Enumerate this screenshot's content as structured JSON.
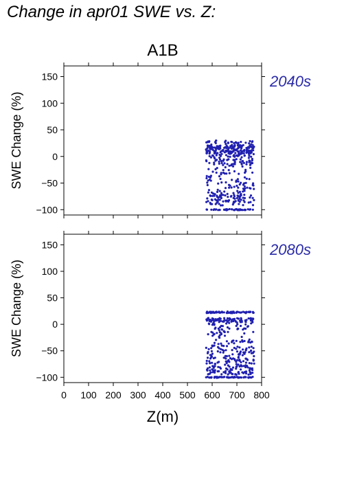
{
  "page_title": "Change in apr01 SWE vs. Z:",
  "colors": {
    "points": "#2020b0",
    "period_label": "#2a2aa8",
    "axis": "#000000"
  },
  "chart_data": [
    {
      "type": "scatter",
      "title": "A1B",
      "period_label": "2040s",
      "ylabel": "SWE Change (%)",
      "xlabel": "",
      "xlim": [
        0,
        800
      ],
      "ylim": [
        -110,
        170
      ],
      "xticks": [
        0,
        100,
        200,
        300,
        400,
        500,
        600,
        700,
        800
      ],
      "yticks": [
        -100,
        -50,
        0,
        50,
        100,
        150
      ],
      "x_tick_labels_shown": false,
      "grid": false,
      "x_range": [
        575,
        770
      ],
      "bands": [
        {
          "y_min": -101,
          "y_max": -99,
          "count": 45
        },
        {
          "y_min": -92,
          "y_max": -72,
          "count": 80
        },
        {
          "y_min": -72,
          "y_max": -45,
          "count": 55
        },
        {
          "y_min": -45,
          "y_max": -15,
          "count": 40
        },
        {
          "y_min": -15,
          "y_max": 5,
          "count": 80
        },
        {
          "y_min": 5,
          "y_max": 22,
          "count": 160
        },
        {
          "y_min": 22,
          "y_max": 30,
          "count": 30
        }
      ]
    },
    {
      "type": "scatter",
      "title": "",
      "period_label": "2080s",
      "ylabel": "SWE Change (%)",
      "xlabel": "Z(m)",
      "xlim": [
        0,
        800
      ],
      "ylim": [
        -110,
        170
      ],
      "xticks": [
        0,
        100,
        200,
        300,
        400,
        500,
        600,
        700,
        800
      ],
      "yticks": [
        -100,
        -50,
        0,
        50,
        100,
        150
      ],
      "x_tick_labels_shown": true,
      "grid": false,
      "x_range": [
        575,
        770
      ],
      "bands": [
        {
          "y_min": -101,
          "y_max": -99,
          "count": 60
        },
        {
          "y_min": -95,
          "y_max": -80,
          "count": 70
        },
        {
          "y_min": -80,
          "y_max": -45,
          "count": 110
        },
        {
          "y_min": -45,
          "y_max": -10,
          "count": 60
        },
        {
          "y_min": -10,
          "y_max": 5,
          "count": 40
        },
        {
          "y_min": 5,
          "y_max": 12,
          "count": 70
        },
        {
          "y_min": 21,
          "y_max": 24,
          "count": 70
        }
      ]
    }
  ]
}
